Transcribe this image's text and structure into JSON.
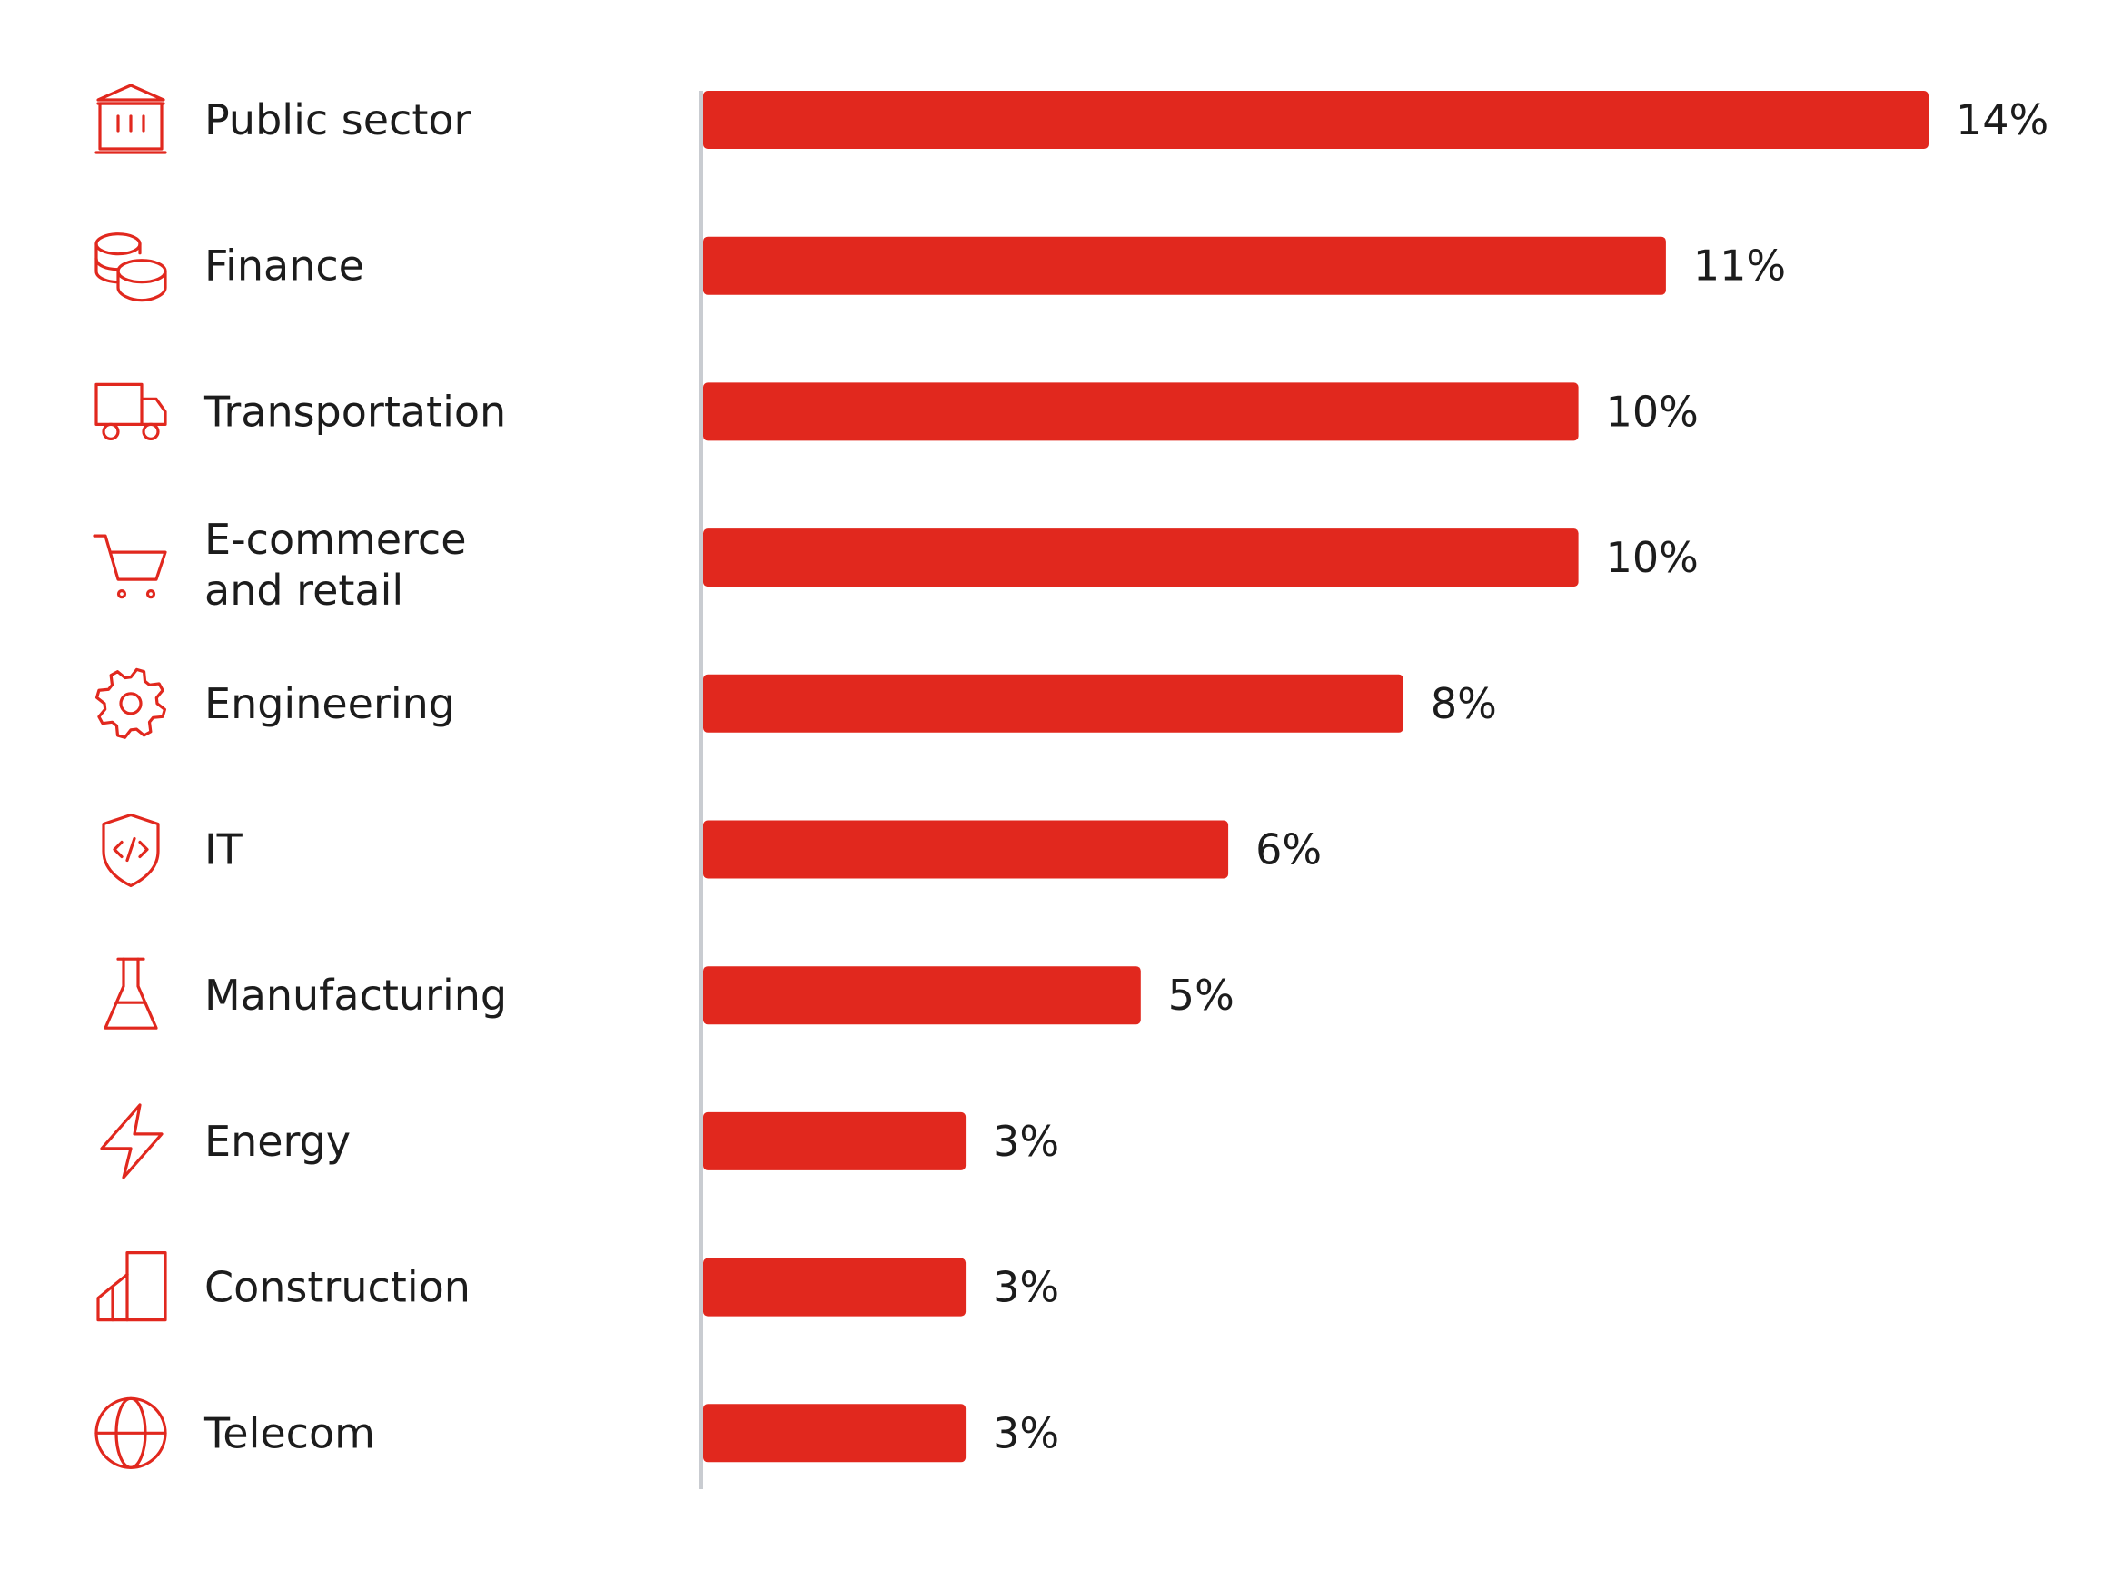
{
  "chart_data": {
    "type": "bar",
    "orientation": "horizontal",
    "categories": [
      "Public sector",
      "Finance",
      "Transportation",
      "E-commerce\nand retail",
      "Engineering",
      "IT",
      "Manufacturing",
      "Energy",
      "Construction",
      "Telecom"
    ],
    "values": [
      14,
      11,
      10,
      10,
      8,
      6,
      5,
      3,
      3,
      3
    ],
    "value_labels": [
      "14%",
      "11%",
      "10%",
      "10%",
      "8%",
      "6%",
      "5%",
      "3%",
      "3%",
      "3%"
    ],
    "icons": [
      "government-building-icon",
      "coins-icon",
      "truck-icon",
      "shopping-cart-icon",
      "gear-icon",
      "code-shield-icon",
      "flask-icon",
      "lightning-icon",
      "buildings-icon",
      "globe-icon"
    ],
    "xlim": [
      0,
      14
    ],
    "title": "",
    "xlabel": "",
    "ylabel": "",
    "grid": false,
    "legend": "none",
    "bar_color": "#e1281e",
    "axis_color": "#c9ccd1",
    "text_color": "#1c1c1c"
  }
}
